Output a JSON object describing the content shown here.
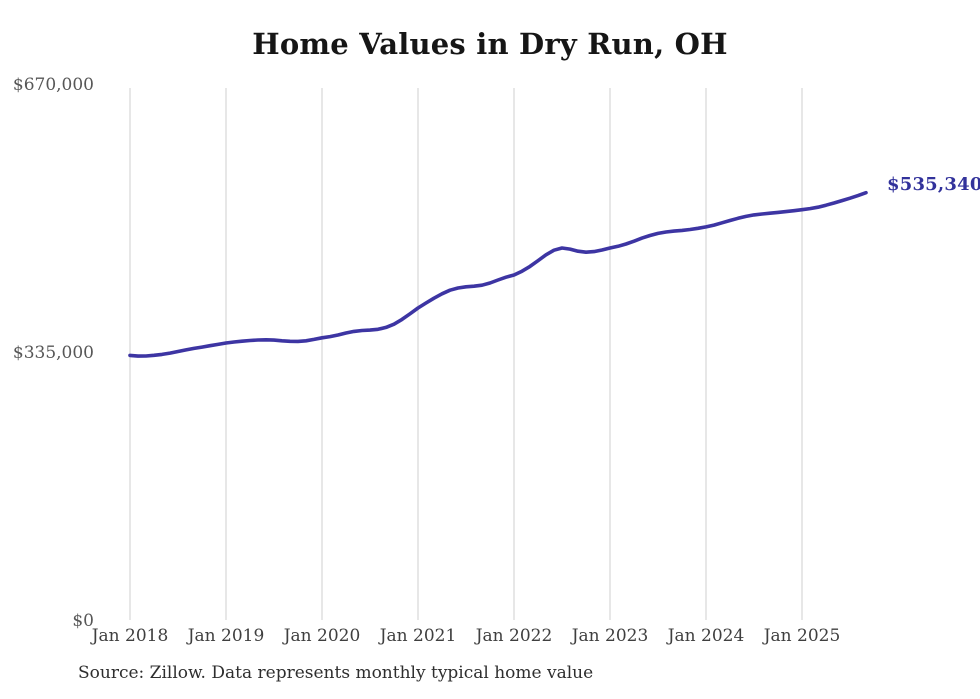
{
  "chart": {
    "title": "Home Values in Dry Run, OH",
    "source": "Source: Zillow. Data represents monthly typical home value",
    "end_label": "$535,340"
  },
  "chart_data": {
    "type": "line",
    "title": "Home Values in Dry Run, OH",
    "subtitle": "",
    "xlabel": "",
    "ylabel": "",
    "legend": "none",
    "grid": "vertical-only",
    "line_color": "#3d35a3",
    "grid_color": "#cfcfcf",
    "end_label": {
      "text": "$535,340",
      "value": 535340
    },
    "y_axis": {
      "min": 0,
      "max": 670000,
      "ticks": [
        {
          "label": "$670,000",
          "value": 670000
        },
        {
          "label": "$335,000",
          "value": 335000
        },
        {
          "label": "$0",
          "value": 0
        }
      ]
    },
    "x_axis": {
      "ticks": [
        {
          "label": "Jan 2018",
          "month_index": 0
        },
        {
          "label": "Jan 2019",
          "month_index": 12
        },
        {
          "label": "Jan 2020",
          "month_index": 24
        },
        {
          "label": "Jan 2021",
          "month_index": 36
        },
        {
          "label": "Jan 2022",
          "month_index": 48
        },
        {
          "label": "Jan 2023",
          "month_index": 60
        },
        {
          "label": "Jan 2024",
          "month_index": 72
        },
        {
          "label": "Jan 2025",
          "month_index": 84
        }
      ]
    },
    "x_range": {
      "start": "Jan 2018",
      "end": "Sep 2025",
      "step": "1 month"
    },
    "series": [
      {
        "name": "Typical home value",
        "values": [
          332000,
          331100,
          331300,
          332100,
          333300,
          334900,
          336900,
          338900,
          340800,
          342400,
          344100,
          345800,
          347500,
          348700,
          349700,
          350600,
          351200,
          351500,
          351100,
          350300,
          349600,
          349500,
          350300,
          352000,
          354000,
          355500,
          357500,
          360000,
          362000,
          363100,
          363600,
          364600,
          367000,
          371000,
          377000,
          384000,
          391200,
          397500,
          403500,
          409000,
          413500,
          416300,
          417800,
          418500,
          419800,
          422500,
          426300,
          429700,
          432500,
          437200,
          443200,
          450400,
          457800,
          463500,
          466200,
          464900,
          462300,
          461000,
          461700,
          463700,
          466200,
          468400,
          471200,
          474800,
          478600,
          481900,
          484500,
          486200,
          487400,
          488300,
          489400,
          490900,
          492600,
          494900,
          497700,
          500600,
          503400,
          505800,
          507600,
          508800,
          509800,
          510800,
          511800,
          512900,
          514100,
          515500,
          517300,
          519700,
          522500,
          525500,
          528500,
          531700,
          535340
        ]
      }
    ]
  }
}
